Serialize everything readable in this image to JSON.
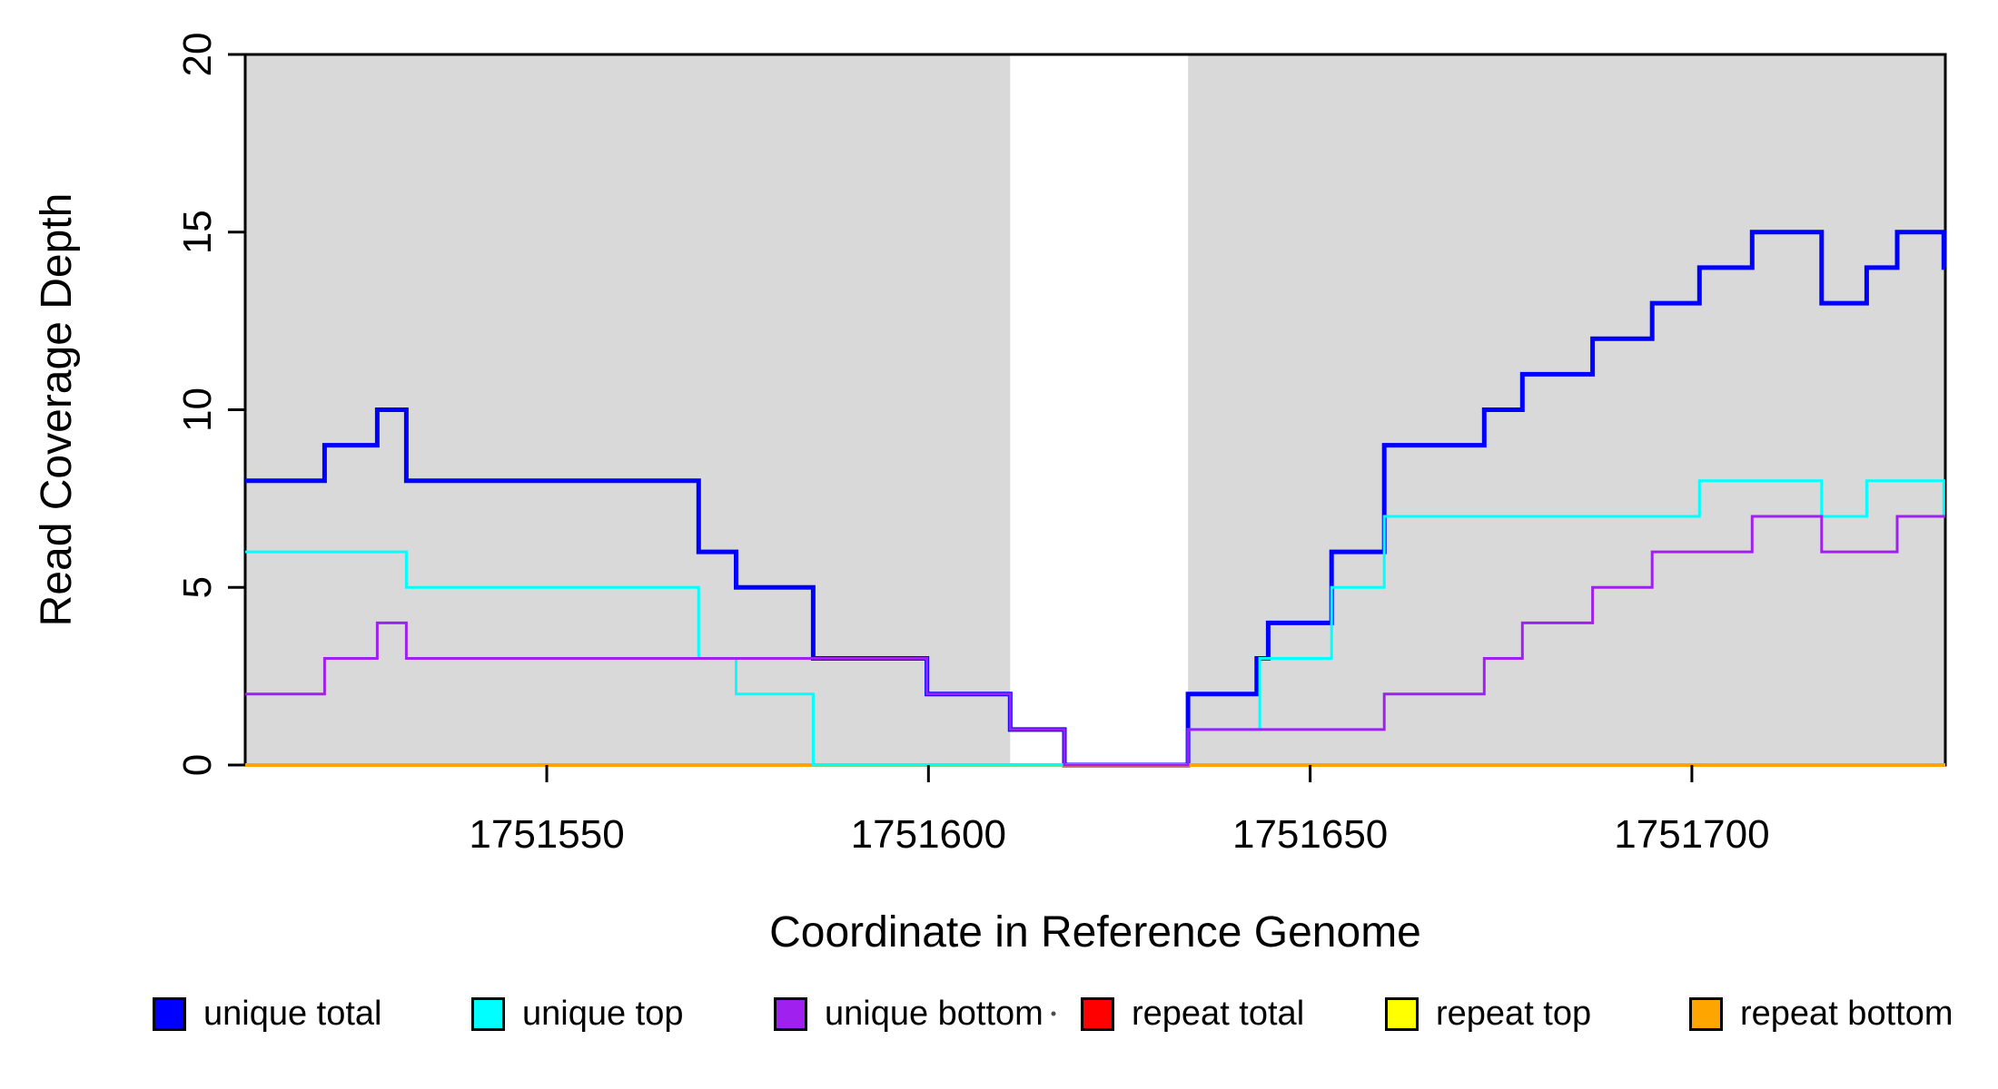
{
  "chart_data": {
    "type": "line",
    "subtype": "step",
    "title": "",
    "xlabel": "Coordinate in Reference Genome",
    "ylabel": "Read Coverage Depth",
    "x_range": [
      1751510.5,
      1751733.2
    ],
    "y_range": [
      0,
      20
    ],
    "grid": "off",
    "background_color": "#ffffff",
    "box_color": "#000000",
    "x_ticks": [
      {
        "value": 1751550,
        "label": "1751550"
      },
      {
        "value": 1751600,
        "label": "1751600"
      },
      {
        "value": 1751650,
        "label": "1751650"
      },
      {
        "value": 1751700,
        "label": "1751700"
      }
    ],
    "y_ticks": [
      {
        "value": 0,
        "label": "0"
      },
      {
        "value": 5,
        "label": "5"
      },
      {
        "value": 10,
        "label": "10"
      },
      {
        "value": 15,
        "label": "15"
      },
      {
        "value": 20,
        "label": "20"
      }
    ],
    "shaded_regions": [
      {
        "x0": 1751510.5,
        "x1": 1751610.7,
        "color": "#d9d9d9"
      },
      {
        "x0": 1751634.0,
        "x1": 1751733.2,
        "color": "#d9d9d9"
      }
    ],
    "series": [
      {
        "name": "unique total",
        "color": "#0000ff",
        "width": 5,
        "points": [
          [
            1751510.5,
            8
          ],
          [
            1751520.9,
            9
          ],
          [
            1751527.8,
            10
          ],
          [
            1751531.6,
            8
          ],
          [
            1751569.9,
            6
          ],
          [
            1751574.8,
            5
          ],
          [
            1751584.9,
            3
          ],
          [
            1751599.8,
            2
          ],
          [
            1751610.7,
            1
          ],
          [
            1751617.8,
            0
          ],
          [
            1751634.0,
            2
          ],
          [
            1751643.0,
            3
          ],
          [
            1751644.5,
            4
          ],
          [
            1751652.8,
            6
          ],
          [
            1751659.7,
            9
          ],
          [
            1751672.8,
            10
          ],
          [
            1751677.8,
            11
          ],
          [
            1751687.0,
            12
          ],
          [
            1751694.8,
            13
          ],
          [
            1751701.0,
            14
          ],
          [
            1751707.9,
            15
          ],
          [
            1751717.0,
            13
          ],
          [
            1751722.9,
            14
          ],
          [
            1751726.9,
            15
          ],
          [
            1751733.0,
            14
          ]
        ]
      },
      {
        "name": "repeat total",
        "color": "#ff0000",
        "width": 4,
        "points": [
          [
            1751510.5,
            0
          ]
        ]
      },
      {
        "name": "repeat top",
        "color": "#ffff00",
        "width": 4,
        "points": [
          [
            1751510.5,
            0
          ]
        ]
      },
      {
        "name": "repeat bottom",
        "color": "#ffa500",
        "width": 4,
        "points": [
          [
            1751510.5,
            0
          ]
        ]
      },
      {
        "name": "unique top",
        "color": "#00ffff",
        "width": 3,
        "points": [
          [
            1751510.5,
            6
          ],
          [
            1751531.6,
            5
          ],
          [
            1751569.9,
            3
          ],
          [
            1751574.8,
            2
          ],
          [
            1751584.9,
            0
          ],
          [
            1751634.0,
            1
          ],
          [
            1751643.4,
            3
          ],
          [
            1751652.8,
            5
          ],
          [
            1751659.7,
            7
          ],
          [
            1751701.0,
            8
          ],
          [
            1751717.0,
            7
          ],
          [
            1751722.9,
            8
          ],
          [
            1751733.0,
            7
          ]
        ]
      },
      {
        "name": "unique bottom",
        "color": "#a020f0",
        "width": 3,
        "points": [
          [
            1751510.5,
            2
          ],
          [
            1751520.9,
            3
          ],
          [
            1751527.8,
            4
          ],
          [
            1751531.6,
            3
          ],
          [
            1751599.8,
            2
          ],
          [
            1751610.7,
            1
          ],
          [
            1751617.8,
            0
          ],
          [
            1751634.0,
            1
          ],
          [
            1751659.7,
            2
          ],
          [
            1751672.8,
            3
          ],
          [
            1751677.8,
            4
          ],
          [
            1751687.0,
            5
          ],
          [
            1751694.8,
            6
          ],
          [
            1751707.9,
            7
          ],
          [
            1751717.0,
            6
          ],
          [
            1751726.9,
            7
          ]
        ]
      }
    ],
    "legend": [
      {
        "label": "unique total",
        "color": "#0000ff"
      },
      {
        "label": "unique top",
        "color": "#00ffff"
      },
      {
        "label": "unique bottom",
        "color": "#a020f0"
      },
      {
        "label": "repeat total",
        "color": "#ff0000"
      },
      {
        "label": "repeat top",
        "color": "#ffff00"
      },
      {
        "label": "repeat bottom",
        "color": "#ffa500"
      }
    ],
    "legend_position": "bottom"
  }
}
